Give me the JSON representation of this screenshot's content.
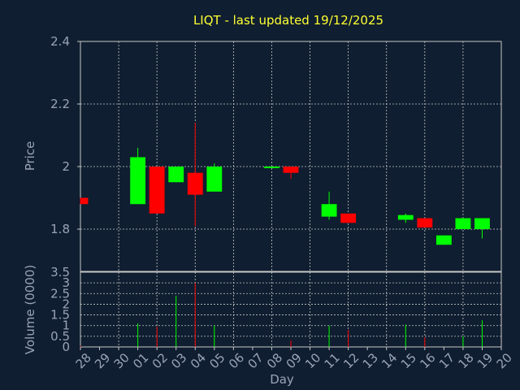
{
  "chart_data": [
    {
      "type": "candlestick",
      "title": "LIQT - last updated 19/12/2025",
      "xlabel": "",
      "ylabel": "Price",
      "ylim": [
        1.665,
        2.4
      ],
      "yticks": [
        1.8,
        2,
        2.2,
        2.4
      ],
      "grid": true,
      "x": [
        "28",
        "29",
        "30",
        "01",
        "02",
        "03",
        "04",
        "05",
        "06",
        "07",
        "08",
        "09",
        "10",
        "11",
        "12",
        "13",
        "14",
        "15",
        "16",
        "17",
        "18",
        "19",
        "20"
      ],
      "candles": [
        {
          "day": "28",
          "open": 1.9,
          "high": 1.9,
          "low": 1.88,
          "close": 1.88
        },
        {
          "day": "01",
          "open": 1.88,
          "high": 2.06,
          "low": 1.88,
          "close": 2.03
        },
        {
          "day": "02",
          "open": 2.0,
          "high": 2.0,
          "low": 1.85,
          "close": 1.85
        },
        {
          "day": "03",
          "open": 1.95,
          "high": 2.0,
          "low": 1.95,
          "close": 2.0
        },
        {
          "day": "04",
          "open": 1.98,
          "high": 2.14,
          "low": 1.81,
          "close": 1.91
        },
        {
          "day": "05",
          "open": 1.92,
          "high": 2.01,
          "low": 1.92,
          "close": 2.0
        },
        {
          "day": "08",
          "open": 1.995,
          "high": 2.0,
          "low": 1.995,
          "close": 2.0
        },
        {
          "day": "09",
          "open": 2.0,
          "high": 2.0,
          "low": 1.96,
          "close": 1.98
        },
        {
          "day": "11",
          "open": 1.84,
          "high": 1.92,
          "low": 1.83,
          "close": 1.88
        },
        {
          "day": "12",
          "open": 1.85,
          "high": 1.85,
          "low": 1.82,
          "close": 1.82
        },
        {
          "day": "15",
          "open": 1.83,
          "high": 1.85,
          "low": 1.82,
          "close": 1.845
        },
        {
          "day": "16",
          "open": 1.835,
          "high": 1.835,
          "low": 1.805,
          "close": 1.805
        },
        {
          "day": "17",
          "open": 1.75,
          "high": 1.78,
          "low": 1.75,
          "close": 1.78
        },
        {
          "day": "18",
          "open": 1.8,
          "high": 1.835,
          "low": 1.8,
          "close": 1.835
        },
        {
          "day": "19",
          "open": 1.8,
          "high": 1.835,
          "low": 1.77,
          "close": 1.835
        }
      ]
    },
    {
      "type": "bar",
      "title": "",
      "xlabel": "Day",
      "ylabel": "Volume (0000)",
      "ylim": [
        0,
        3.5
      ],
      "yticks": [
        0,
        0.5,
        1,
        1.5,
        2,
        2.5,
        3,
        3.5
      ],
      "grid": true,
      "categories": [
        "28",
        "29",
        "30",
        "01",
        "02",
        "03",
        "04",
        "05",
        "06",
        "07",
        "08",
        "09",
        "10",
        "11",
        "12",
        "13",
        "14",
        "15",
        "16",
        "17",
        "18",
        "19",
        "20"
      ],
      "values": [
        0.05,
        0,
        0,
        1.1,
        0.95,
        2.4,
        3.0,
        1.0,
        0,
        0,
        0.02,
        0.3,
        0,
        1.0,
        0.8,
        0,
        0,
        1.05,
        0.45,
        0,
        0.5,
        1.25,
        0
      ],
      "bar_colors": [
        "red",
        "none",
        "none",
        "green",
        "red",
        "green",
        "red",
        "green",
        "none",
        "none",
        "green",
        "red",
        "none",
        "green",
        "red",
        "none",
        "none",
        "green",
        "red",
        "none",
        "green",
        "green",
        "none"
      ]
    }
  ],
  "colors": {
    "background": "#0f1e30",
    "up": "#00ff00",
    "down": "#ff0000",
    "grid": "#c8c8c8",
    "title": "#ffff33",
    "text": "#9aa3b8"
  }
}
